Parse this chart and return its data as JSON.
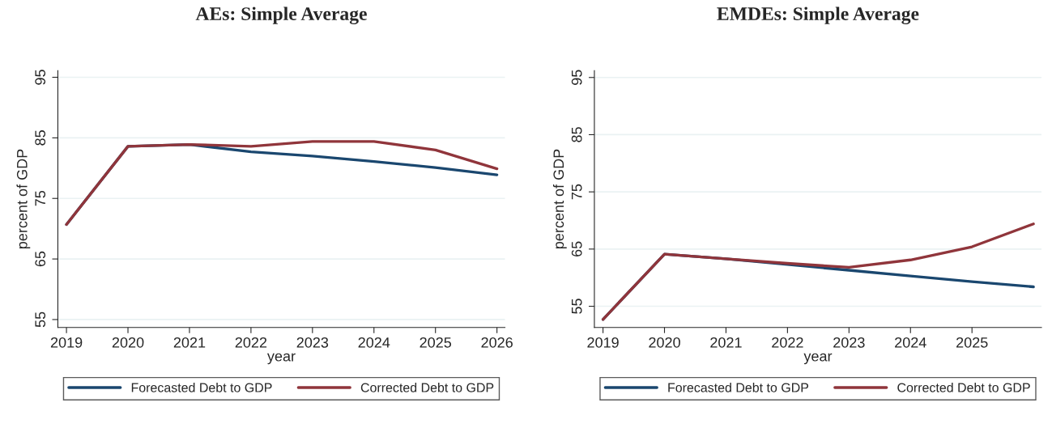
{
  "chart_data": [
    {
      "type": "line",
      "title": "AEs: Simple Average",
      "xlabel": "year",
      "ylabel": "percent of GDP",
      "x": [
        2019,
        2020,
        2021,
        2022,
        2023,
        2024,
        2025,
        2026
      ],
      "xlim": [
        2018.86,
        2026.13
      ],
      "xticks": [
        2019,
        2020,
        2021,
        2022,
        2023,
        2024,
        2025,
        2026
      ],
      "ylim": [
        53.7,
        96.1
      ],
      "yticks": [
        55,
        65,
        75,
        85,
        95
      ],
      "grid": "y",
      "legend": "bottom",
      "series": [
        {
          "name": "Forecasted Debt to GDP",
          "color": "#1a476f",
          "values": [
            70.7,
            83.6,
            83.9,
            82.7,
            82.0,
            81.1,
            80.1,
            78.9
          ]
        },
        {
          "name": "Corrected Debt to GDP",
          "color": "#90353b",
          "values": [
            70.7,
            83.6,
            83.9,
            83.6,
            84.4,
            84.4,
            83.0,
            79.9
          ]
        }
      ]
    },
    {
      "type": "line",
      "title": "EMDEs: Simple Average",
      "xlabel": "year",
      "ylabel": "percent of GDP",
      "x": [
        2019,
        2020,
        2021,
        2022,
        2023,
        2024,
        2025,
        2026
      ],
      "xlim": [
        2018.86,
        2026.13
      ],
      "xticks": [
        2019,
        2020,
        2021,
        2022,
        2023,
        2024,
        2025
      ],
      "ylim": [
        51.3,
        96.2
      ],
      "yticks": [
        55,
        65,
        75,
        85,
        95
      ],
      "grid": "y",
      "legend": "bottom",
      "series": [
        {
          "name": "Forecasted Debt to GDP",
          "color": "#1a476f",
          "values": [
            52.7,
            64.1,
            63.3,
            62.3,
            61.3,
            60.3,
            59.3,
            58.4
          ]
        },
        {
          "name": "Corrected Debt to GDP",
          "color": "#90353b",
          "values": [
            52.7,
            64.1,
            63.3,
            62.5,
            61.8,
            63.1,
            65.4,
            69.4
          ]
        }
      ]
    }
  ]
}
